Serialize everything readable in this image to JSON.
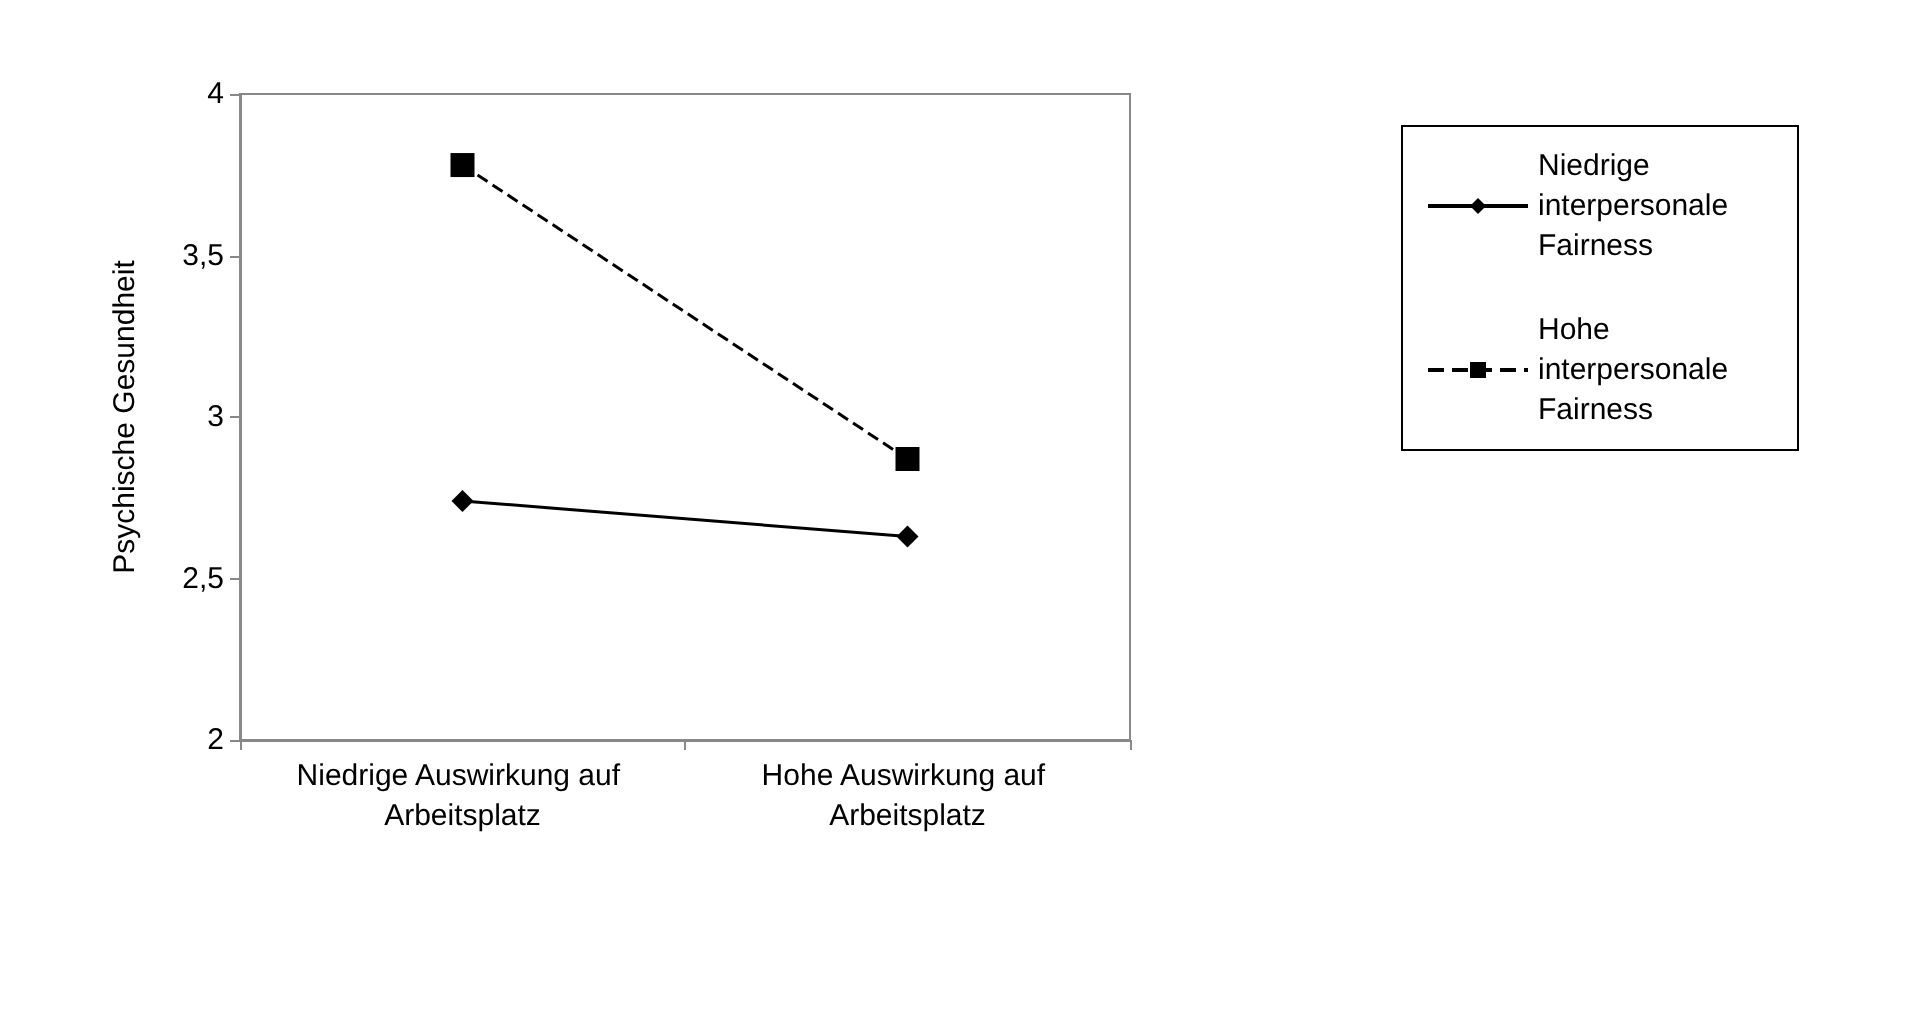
{
  "chart_data": {
    "type": "line",
    "ylabel": "Psychische Gesundheit",
    "categories": [
      "Niedrige Auswirkung auf Arbeitsplatz",
      "Hohe Auswirkung auf Arbeitsplatz"
    ],
    "series": [
      {
        "name": "Niedrige interpersonale Fairness",
        "color": "#000000",
        "values": [
          2.74,
          2.63
        ],
        "marker": "diamond",
        "line_style": "solid"
      },
      {
        "name": "Hohe interpersonale Fairness",
        "color": "#000000",
        "values": [
          3.78,
          2.87
        ],
        "marker": "square",
        "line_style": "dashed"
      }
    ],
    "ylim": [
      2,
      4
    ],
    "yticks": [
      2,
      {
        "value": 2.5,
        "label": "2,5"
      },
      3,
      {
        "value": 3.5,
        "label": "3,5"
      },
      4
    ],
    "grid": false,
    "legend": "top right"
  }
}
